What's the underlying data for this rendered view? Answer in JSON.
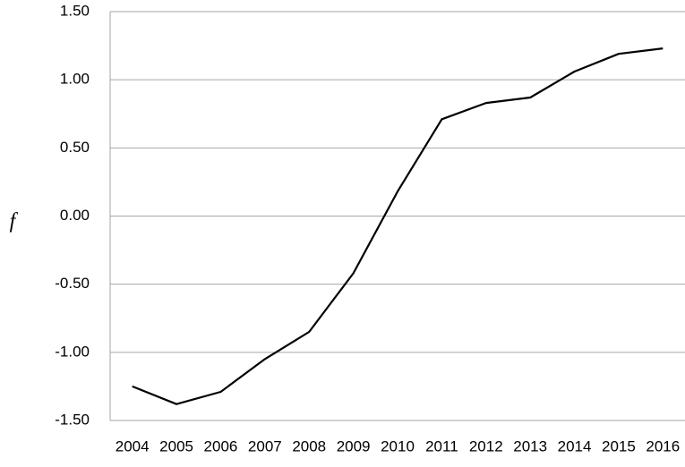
{
  "chart_data": {
    "type": "line",
    "y_label": "f",
    "categories": [
      "2004",
      "2005",
      "2006",
      "2007",
      "2008",
      "2009",
      "2010",
      "2011",
      "2012",
      "2013",
      "2014",
      "2015",
      "2016"
    ],
    "values": [
      -1.25,
      -1.38,
      -1.29,
      -1.05,
      -0.85,
      -0.42,
      0.18,
      0.71,
      0.83,
      0.87,
      1.06,
      1.19,
      1.23
    ],
    "color": "#000000",
    "ylim": [
      -1.5,
      1.5
    ],
    "yticks": [
      {
        "value": -1.5,
        "label": "-1.50"
      },
      {
        "value": -1,
        "label": "-1.00"
      },
      {
        "value": -0.5,
        "label": "-0.50"
      },
      {
        "value": 0,
        "label": "0.00"
      },
      {
        "value": 0.5,
        "label": "0.50"
      },
      {
        "value": 1,
        "label": "1.00"
      },
      {
        "value": 1.5,
        "label": "1.50"
      }
    ],
    "grid": true
  }
}
